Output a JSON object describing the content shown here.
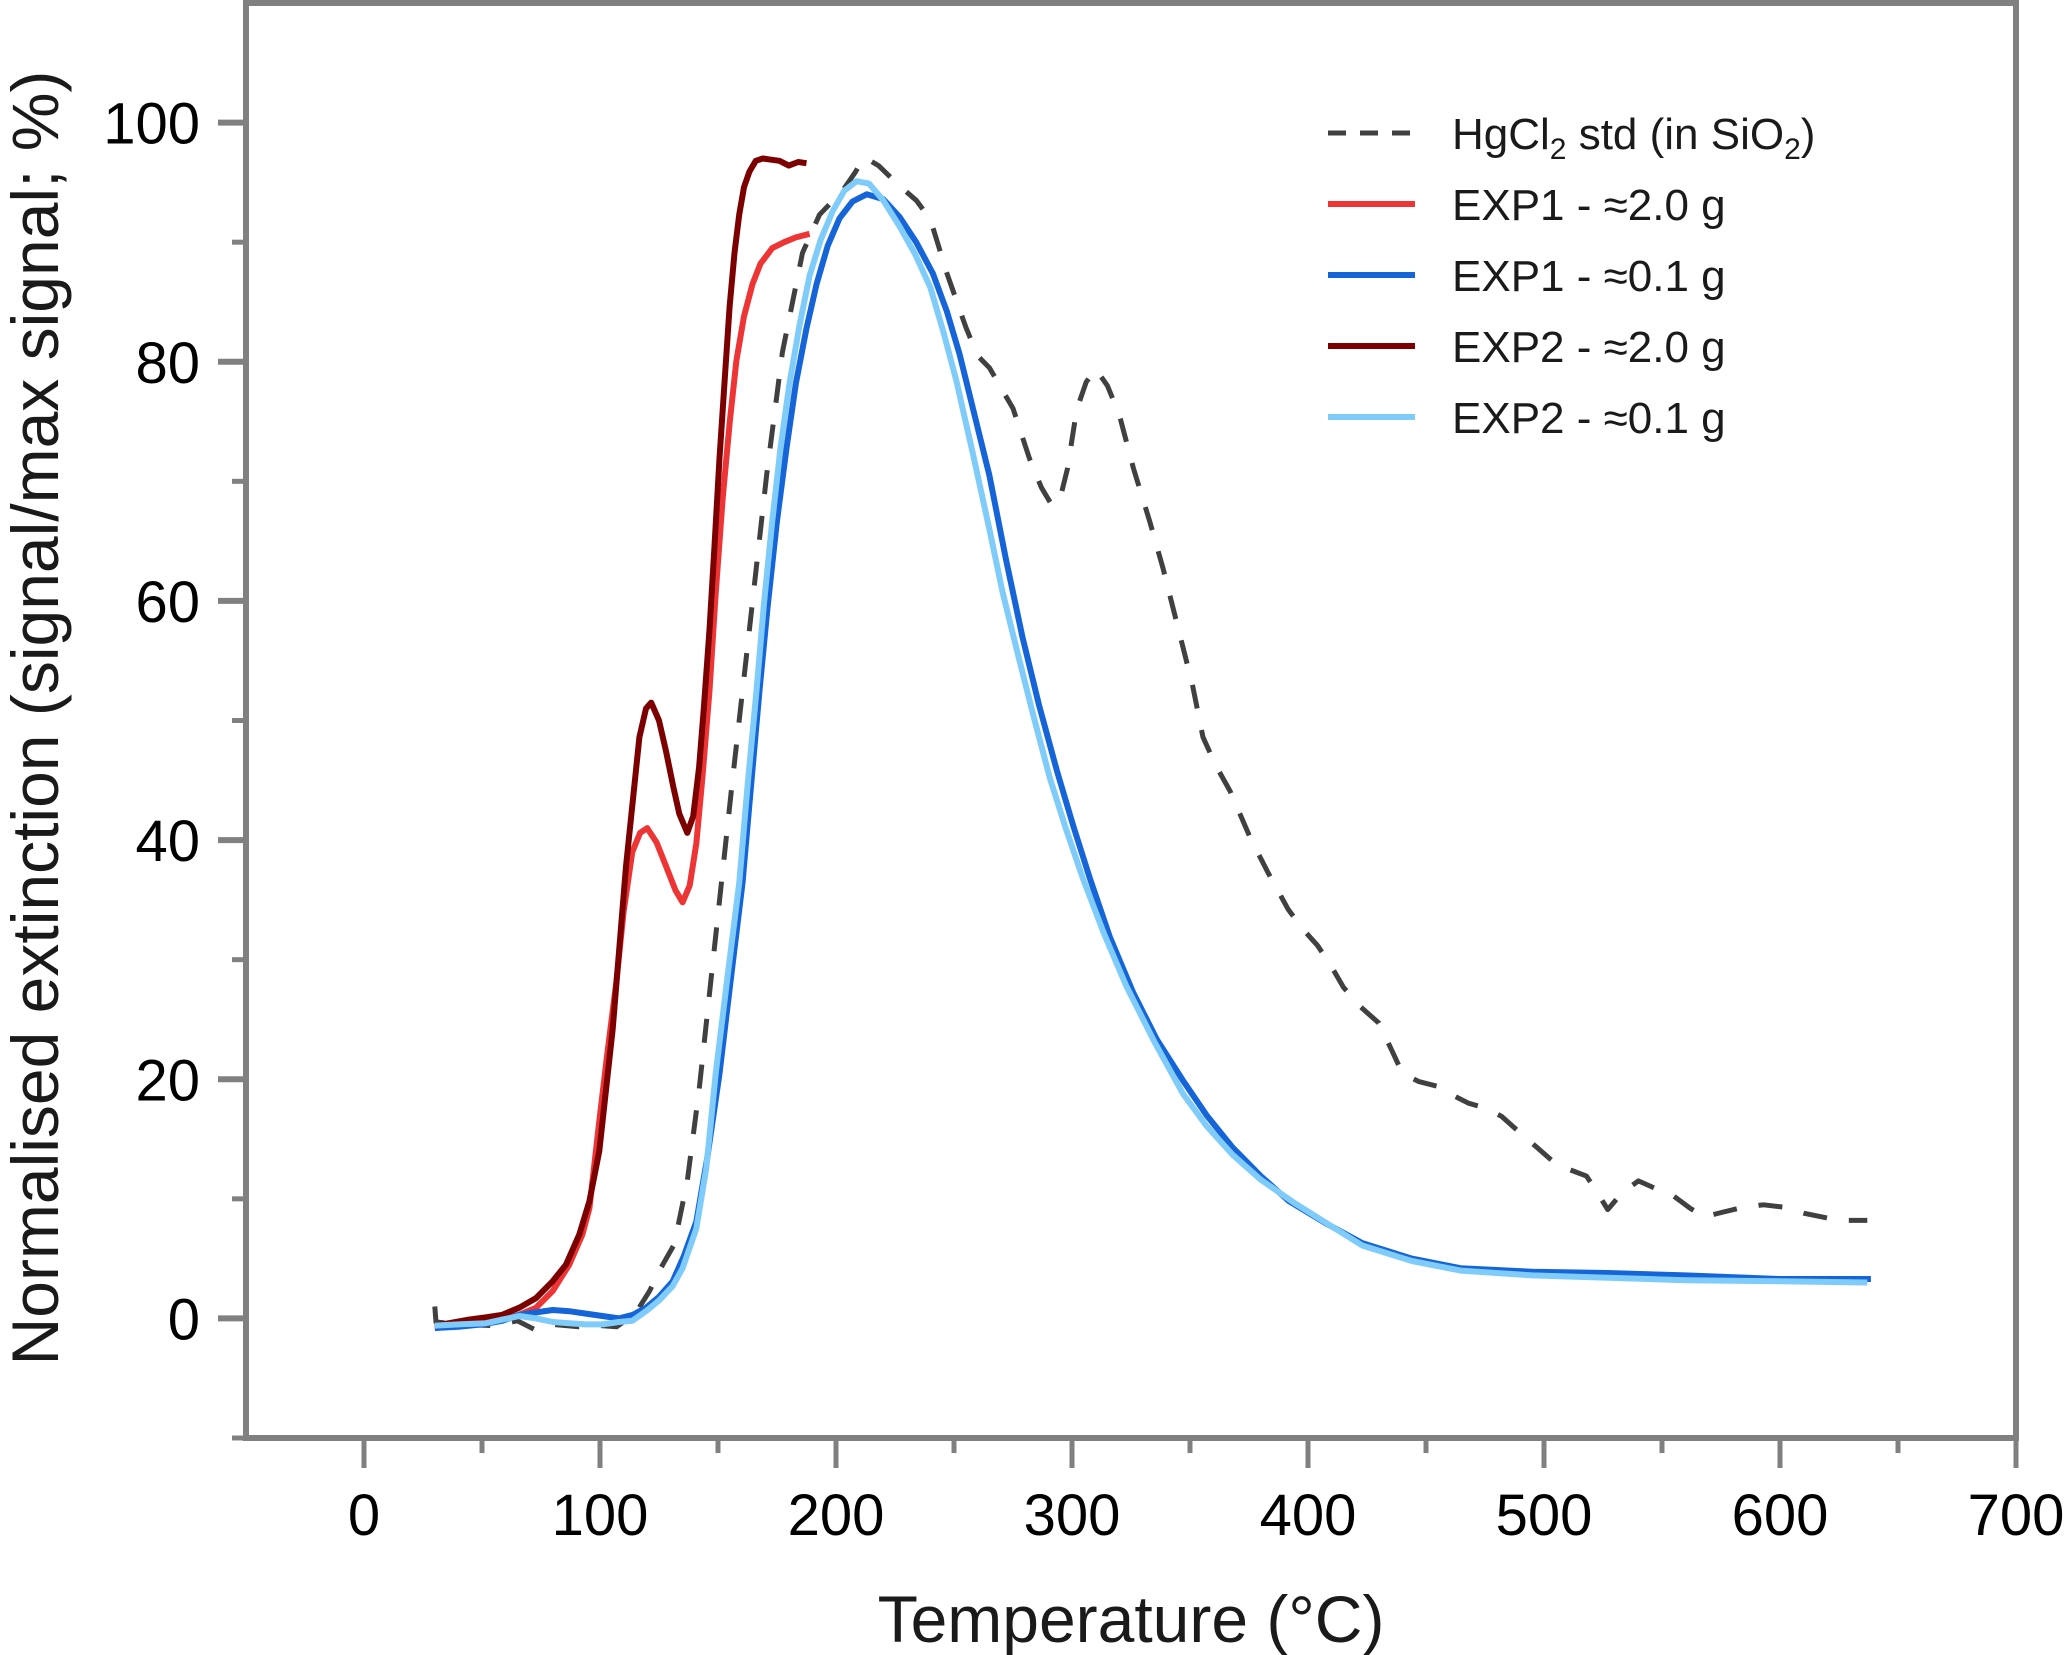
{
  "chart_data": {
    "type": "line",
    "title": "",
    "xlabel": "Temperature (°C)",
    "ylabel": "Normalised extinction (signal/max signal; %)",
    "xlim": [
      -50,
      700
    ],
    "ylim": [
      -10,
      110
    ],
    "xticks": [
      0,
      100,
      200,
      300,
      400,
      500,
      600,
      700
    ],
    "xticks_minor": [
      50,
      150,
      250,
      350,
      450,
      550,
      650
    ],
    "yticks": [
      0,
      20,
      40,
      60,
      80,
      100
    ],
    "yticks_minor": [
      -10,
      10,
      30,
      50,
      70,
      90
    ],
    "grid": false,
    "legend_position": "top-right",
    "axis_color": "#808080",
    "series": [
      {
        "name": "HgCl2 std (in SiO2)",
        "legend": {
          "main": "HgCl",
          "sub": "2",
          "mid": " std (in SiO",
          "sub2": "2",
          "end": ")"
        },
        "color": "#404040",
        "style": "dashed",
        "x": [
          30,
          30.5,
          40,
          55,
          65,
          72,
          80,
          91,
          100,
          107,
          115,
          121,
          126,
          131.5,
          137,
          142,
          149,
          156,
          163.3,
          170.6,
          177.3,
          185.8,
          193,
          202.8,
          208,
          212,
          218,
          227,
          234,
          240,
          247,
          255,
          260,
          265,
          270,
          275,
          282,
          287,
          291.5,
          295,
          298,
          302,
          306,
          310,
          315,
          320,
          326,
          333,
          338.6,
          344.5,
          351,
          355.5,
          361,
          367,
          375.5,
          383,
          391.6,
          398,
          404,
          410,
          415,
          422,
          430,
          436,
          440,
          447,
          455,
          462,
          468,
          475,
          482,
          490,
          497,
          504,
          510,
          518,
          523,
          527,
          533,
          540,
          548,
          554.5,
          562,
          568,
          576,
          584.5,
          593,
          601.6,
          610,
          620,
          628,
          637
        ],
        "y": [
          1,
          -0.3,
          -0.5,
          -0.6,
          -0.2,
          -0.9,
          -0.5,
          -0.7,
          -0.6,
          -0.7,
          0.4,
          2.3,
          4.3,
          6.2,
          11.5,
          19.1,
          31.9,
          44.8,
          57.6,
          70.5,
          80.8,
          89.1,
          92.3,
          94.3,
          95.8,
          97.1,
          96.4,
          94.7,
          93.5,
          91.9,
          87.4,
          82.9,
          80.5,
          79.5,
          77.8,
          76.1,
          71.9,
          69.5,
          68,
          68.6,
          71,
          76,
          78.3,
          79.4,
          78,
          75.6,
          71.1,
          66.6,
          62.7,
          58.1,
          53,
          48.6,
          46.2,
          44.1,
          40.2,
          37.3,
          34.2,
          32.5,
          31.2,
          29.4,
          27.7,
          26.1,
          24.7,
          22.2,
          20.5,
          19.8,
          19.4,
          18.6,
          18,
          17.6,
          16.9,
          15.5,
          14.3,
          13.1,
          12.5,
          11.9,
          10.4,
          9.1,
          10.5,
          11.5,
          10.8,
          10.3,
          9.2,
          8.5,
          8.9,
          9.3,
          9.5,
          9.3,
          8.8,
          8.4,
          8.2,
          8.2
        ]
      },
      {
        "name": "EXP1 - ≈2.0 g",
        "legend": {
          "main": "EXP1 - ≈2.0 g"
        },
        "color": "#ee3535",
        "style": "solid",
        "x": [
          30,
          40,
          50,
          58.6,
          65.8,
          72.9,
          80,
          87,
          92.5,
          95.5,
          99.7,
          103,
          106.9,
          110,
          113.7,
          117,
          120,
          124,
          128,
          132,
          135,
          138,
          140.8,
          143.5,
          146.4,
          149,
          152,
          155,
          157.8,
          161,
          164.6,
          168,
          173,
          178,
          183,
          188.8
        ],
        "y": [
          -0.8,
          -0.6,
          -0.4,
          -0.1,
          0.3,
          0.9,
          2.3,
          4.5,
          7,
          9.2,
          16.5,
          22,
          28.1,
          34,
          39,
          40.6,
          41,
          39.8,
          37.8,
          35.8,
          34.8,
          36.2,
          39.7,
          45.5,
          52.5,
          60.5,
          68.6,
          75,
          80.1,
          83.8,
          86.5,
          88.2,
          89.5,
          90,
          90.4,
          90.7
        ]
      },
      {
        "name": "EXP1 - ≈0.1 g",
        "legend": {
          "main": "EXP1 - ≈0.1 g"
        },
        "color": "#1565d8",
        "style": "solid",
        "x": [
          30,
          40,
          50,
          58.6,
          65.8,
          72.9,
          80,
          87,
          94,
          101,
          108,
          114,
          119.5,
          125,
          130.8,
          135.5,
          140.8,
          145.5,
          150.6,
          155.5,
          160.4,
          164,
          167.6,
          171,
          175,
          179,
          183,
          187.5,
          191.8,
          196.5,
          201.5,
          207,
          213,
          220,
          227,
          234,
          241,
          247,
          252.4,
          258.5,
          265,
          272,
          279,
          286,
          293.6,
          300.5,
          307.6,
          316,
          326,
          336,
          347,
          357,
          368,
          380,
          392,
          408,
          423,
          444,
          464.6,
          495,
          527,
          560,
          600,
          638.5
        ],
        "y": [
          -0.8,
          -0.7,
          -0.5,
          -0.2,
          0.3,
          0.5,
          0.7,
          0.6,
          0.4,
          0.2,
          0,
          0.3,
          0.9,
          1.8,
          3.1,
          5.2,
          8.1,
          13.5,
          20.4,
          28.5,
          36.4,
          44.5,
          52.5,
          59.5,
          66.7,
          72.7,
          78.2,
          82.8,
          86.5,
          89.7,
          92,
          93.4,
          94,
          93.6,
          92.1,
          90,
          87.4,
          84.2,
          80.6,
          75.7,
          70.5,
          63.5,
          57,
          51.3,
          45.8,
          41.2,
          36.8,
          31.9,
          27.2,
          23.3,
          19.9,
          17,
          14.3,
          11.9,
          9.8,
          7.9,
          6.3,
          5,
          4.2,
          3.9,
          3.8,
          3.6,
          3.3,
          3.3
        ]
      },
      {
        "name": "EXP2 - ≈2.0 g",
        "legend": {
          "main": "EXP2 - ≈2.0 g"
        },
        "color": "#7d0000",
        "style": "solid",
        "x": [
          30,
          36,
          44.5,
          52,
          58.6,
          65.8,
          72.9,
          79.9,
          85.6,
          91.2,
          95.5,
          99.7,
          105.4,
          111,
          116.7,
          119.5,
          121.7,
          125,
          128,
          131,
          133.6,
          137,
          139.5,
          142,
          144,
          146.4,
          148.5,
          150.6,
          153,
          154.9,
          157,
          159,
          161,
          163.3,
          166,
          169,
          172.5,
          176,
          180,
          184,
          187.5
        ],
        "y": [
          -0.6,
          -0.4,
          -0.1,
          0.1,
          0.3,
          0.9,
          1.7,
          3.1,
          4.5,
          7,
          9.8,
          14,
          24.2,
          37.8,
          48.6,
          51,
          51.5,
          50,
          47.4,
          44.5,
          42.2,
          40.6,
          42,
          46.1,
          51,
          57.6,
          64.6,
          71.8,
          79,
          84.6,
          89.1,
          92.3,
          94.6,
          95.9,
          96.8,
          97,
          96.9,
          96.8,
          96.4,
          96.7,
          96.6
        ]
      },
      {
        "name": "EXP2 - ≈0.1 g",
        "legend": {
          "main": "EXP2 - ≈0.1 g"
        },
        "color": "#7fccfb",
        "style": "solid",
        "x": [
          30,
          40,
          51.6,
          58.6,
          65.8,
          72.9,
          80,
          87,
          94,
          101,
          108,
          113.7,
          119.5,
          125,
          130.8,
          135,
          140.8,
          145,
          149,
          154,
          159,
          162.5,
          166.3,
          169.5,
          173,
          176.5,
          180.3,
          184.5,
          188.8,
          193.5,
          198.6,
          203.5,
          208.7,
          214,
          220,
          227,
          233.5,
          240,
          245.5,
          251,
          258,
          265,
          270.5,
          276.6,
          283.5,
          290.6,
          297.5,
          304.6,
          313.5,
          323,
          335,
          347,
          357,
          368,
          380,
          394.6,
          410,
          423,
          444,
          464.6,
          495,
          527,
          560,
          600,
          637
        ],
        "y": [
          -0.6,
          -0.5,
          -0.4,
          -0.1,
          0.2,
          0,
          -0.3,
          -0.4,
          -0.5,
          -0.5,
          -0.3,
          -0.2,
          0.6,
          1.5,
          2.7,
          4.2,
          7.5,
          12.5,
          20.4,
          28.5,
          36.4,
          44.5,
          52.5,
          59.8,
          66.7,
          72.8,
          78.2,
          83,
          87.2,
          90.2,
          92.6,
          94.3,
          95.1,
          94.9,
          93.5,
          91.3,
          89,
          86.2,
          82.5,
          78.4,
          72.3,
          66,
          60.8,
          55.9,
          50.5,
          45.2,
          40.9,
          36.8,
          32.2,
          27.8,
          23.1,
          18.8,
          16.1,
          13.7,
          11.6,
          9.6,
          7.7,
          6.1,
          4.8,
          4,
          3.6,
          3.4,
          3.2,
          3.1,
          3
        ]
      }
    ]
  }
}
